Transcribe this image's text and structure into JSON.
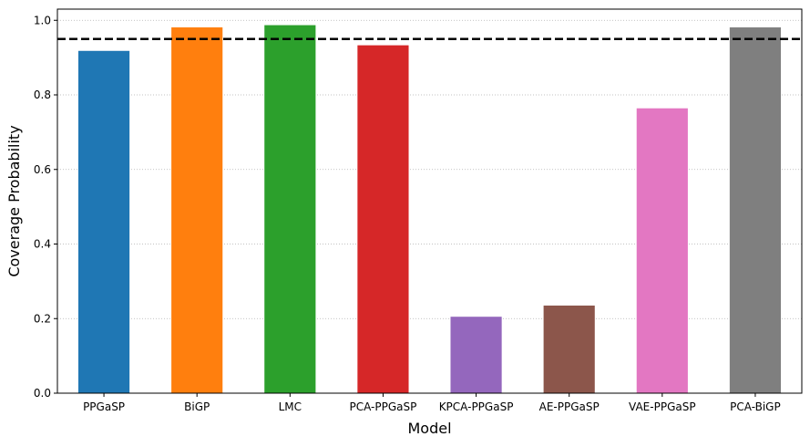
{
  "chart_data": {
    "type": "bar",
    "title": "",
    "xlabel": "Model",
    "ylabel": "Coverage Probability",
    "categories": [
      "PPGaSP",
      "BiGP",
      "LMC",
      "PCA-PPGaSP",
      "KPCA-PPGaSP",
      "AE-PPGaSP",
      "VAE-PPGaSP",
      "PCA-BiGP"
    ],
    "values": [
      0.918,
      0.981,
      0.987,
      0.933,
      0.205,
      0.235,
      0.764,
      0.981
    ],
    "colors": [
      "#1f77b4",
      "#ff7f0e",
      "#2ca02c",
      "#d62728",
      "#9467bd",
      "#8c564b",
      "#e377c2",
      "#7f7f7f"
    ],
    "ylim": [
      0,
      1.03
    ],
    "yticks": [
      "0.0",
      "0.2",
      "0.4",
      "0.6",
      "0.8",
      "1.0"
    ],
    "reference_line": {
      "value": 0.95,
      "style": "dashed",
      "color": "#000000"
    },
    "grid": "y-dotted",
    "legend": "none"
  }
}
